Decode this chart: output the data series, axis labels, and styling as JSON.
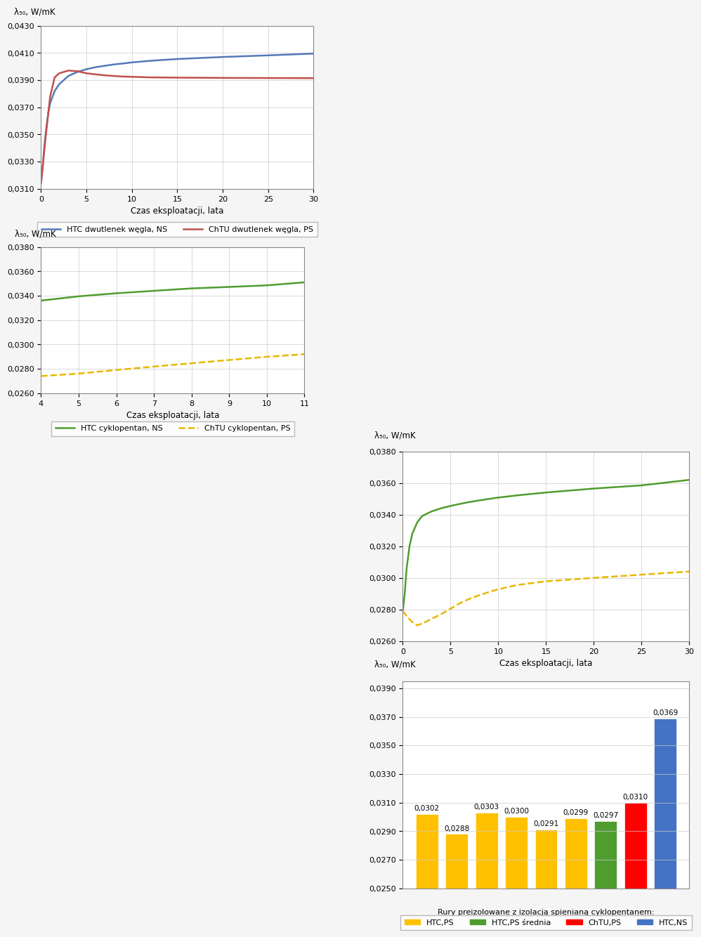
{
  "fig15": {
    "ylabel": "λ₅₀, W/mK",
    "xlabel": "Czas eksploatacji, lata",
    "xlim": [
      0,
      30
    ],
    "ylim": [
      0.031,
      0.043
    ],
    "yticks": [
      0.031,
      0.033,
      0.035,
      0.037,
      0.039,
      0.041,
      0.043
    ],
    "xticks": [
      0,
      5,
      10,
      15,
      20,
      25,
      30
    ],
    "legend": [
      "HTC dwutlenek węgla, NS",
      "ChTU dwutlenek węgla, PS"
    ],
    "line1_color": "#5578B8",
    "line2_color": "#C0504D",
    "line1_style": "solid",
    "line2_style": "solid",
    "htc_x": [
      0,
      0.2,
      0.4,
      0.6,
      0.8,
      1.0,
      1.5,
      2,
      3,
      4,
      5,
      6,
      7,
      8,
      9,
      10,
      12,
      15,
      20,
      25,
      30
    ],
    "htc_y": [
      0.0315,
      0.0328,
      0.0344,
      0.0356,
      0.0366,
      0.0373,
      0.0382,
      0.0387,
      0.0393,
      0.0396,
      0.0398,
      0.03995,
      0.04005,
      0.04015,
      0.04022,
      0.0403,
      0.04042,
      0.04055,
      0.0407,
      0.04082,
      0.04095
    ],
    "chtu_x": [
      0,
      0.5,
      1.0,
      1.5,
      2,
      3,
      4,
      5,
      6,
      7,
      8,
      9,
      10,
      12,
      15,
      20,
      25,
      30
    ],
    "chtu_y": [
      0.0314,
      0.0348,
      0.0378,
      0.0392,
      0.0395,
      0.0397,
      0.03965,
      0.0395,
      0.03942,
      0.03935,
      0.0393,
      0.03926,
      0.03924,
      0.0392,
      0.03918,
      0.03916,
      0.03915,
      0.03914
    ]
  },
  "fig16": {
    "ylabel": "λ₅₀, W/mK",
    "xlabel": "Czas eksploatacji, lata",
    "xlim": [
      4,
      11
    ],
    "ylim": [
      0.026,
      0.038
    ],
    "yticks": [
      0.026,
      0.028,
      0.03,
      0.032,
      0.034,
      0.036,
      0.038
    ],
    "xticks": [
      4,
      5,
      6,
      7,
      8,
      9,
      10,
      11
    ],
    "legend": [
      "HTC cyklopentan, NS",
      "ChTU cyklopentan, PS"
    ],
    "line1_color": "#4F9D2F",
    "line2_color": "#E8B800",
    "line1_style": "solid",
    "line2_style": "dashed",
    "htc_x": [
      4,
      5,
      6,
      7,
      8,
      9,
      10,
      11
    ],
    "htc_y": [
      0.0336,
      0.03395,
      0.0342,
      0.0344,
      0.0346,
      0.03472,
      0.03485,
      0.0351
    ],
    "chtu_x": [
      4,
      5,
      6,
      7,
      8,
      9,
      10,
      11
    ],
    "chtu_y": [
      0.0274,
      0.0276,
      0.0279,
      0.02818,
      0.02845,
      0.02872,
      0.02898,
      0.0292
    ]
  },
  "fig17": {
    "ylabel": "λ₅₀, W/mK",
    "xlabel": "Czas eksploatacji, lata",
    "xlim": [
      0,
      30
    ],
    "ylim": [
      0.026,
      0.038
    ],
    "yticks": [
      0.026,
      0.028,
      0.03,
      0.032,
      0.034,
      0.036,
      0.038
    ],
    "xticks": [
      0,
      5,
      10,
      15,
      20,
      25,
      30
    ],
    "legend": [
      "HTC cyklopentan, NS",
      "ChTU cyklopentan, PS"
    ],
    "line1_color": "#4F9D2F",
    "line2_color": "#E8B800",
    "line1_style": "solid",
    "line2_style": "dashed",
    "htc_x": [
      0,
      0.2,
      0.4,
      0.7,
      1.0,
      1.5,
      2,
      3,
      4,
      5,
      6,
      7,
      8,
      10,
      12,
      15,
      20,
      25,
      30
    ],
    "htc_y": [
      0.0279,
      0.029,
      0.0306,
      0.032,
      0.0328,
      0.0335,
      0.0339,
      0.0342,
      0.0344,
      0.03455,
      0.03468,
      0.0348,
      0.0349,
      0.03508,
      0.03522,
      0.0354,
      0.03565,
      0.03585,
      0.0362
    ],
    "chtu_x": [
      0,
      0.5,
      1.0,
      1.5,
      2,
      3,
      4,
      5,
      6,
      7,
      8,
      9,
      10,
      12,
      15,
      20,
      25,
      30
    ],
    "chtu_y": [
      0.0279,
      0.0275,
      0.0272,
      0.027,
      0.0271,
      0.0274,
      0.0277,
      0.02805,
      0.0284,
      0.02868,
      0.0289,
      0.0291,
      0.02928,
      0.02955,
      0.02978,
      0.03,
      0.0302,
      0.0304
    ]
  },
  "fig18": {
    "ylabel": "λ₅₀, W/mK",
    "xlabel": "Rury preizolowane z izolacją spienianą cyklopentanem:",
    "ylim": [
      0.025,
      0.0395
    ],
    "yticks": [
      0.025,
      0.027,
      0.029,
      0.031,
      0.033,
      0.035,
      0.037,
      0.039
    ],
    "values": [
      0.0302,
      0.0288,
      0.0303,
      0.03,
      0.0291,
      0.0299,
      0.0297,
      0.031,
      0.0369
    ],
    "bar_labels": [
      "0,0302",
      "0,0288",
      "0,0303",
      "0,0300",
      "0,0291",
      "0,0299",
      "0,0297",
      "0,0310",
      "0,0369"
    ],
    "bar_colors": [
      "#FFC000",
      "#FFC000",
      "#FFC000",
      "#FFC000",
      "#FFC000",
      "#FFC000",
      "#4F9D2F",
      "#FF0000",
      "#4472C4"
    ],
    "legend_labels": [
      "HTC,PS",
      "HTC,PS średnia",
      "ChTU,PS",
      "HTC,NS"
    ],
    "legend_colors": [
      "#FFC000",
      "#4F9D2F",
      "#FF0000",
      "#4472C4"
    ]
  },
  "bg_color": "#F5F5F5",
  "chart_bg": "#FFFFFF",
  "border_color": "#AAAAAA"
}
